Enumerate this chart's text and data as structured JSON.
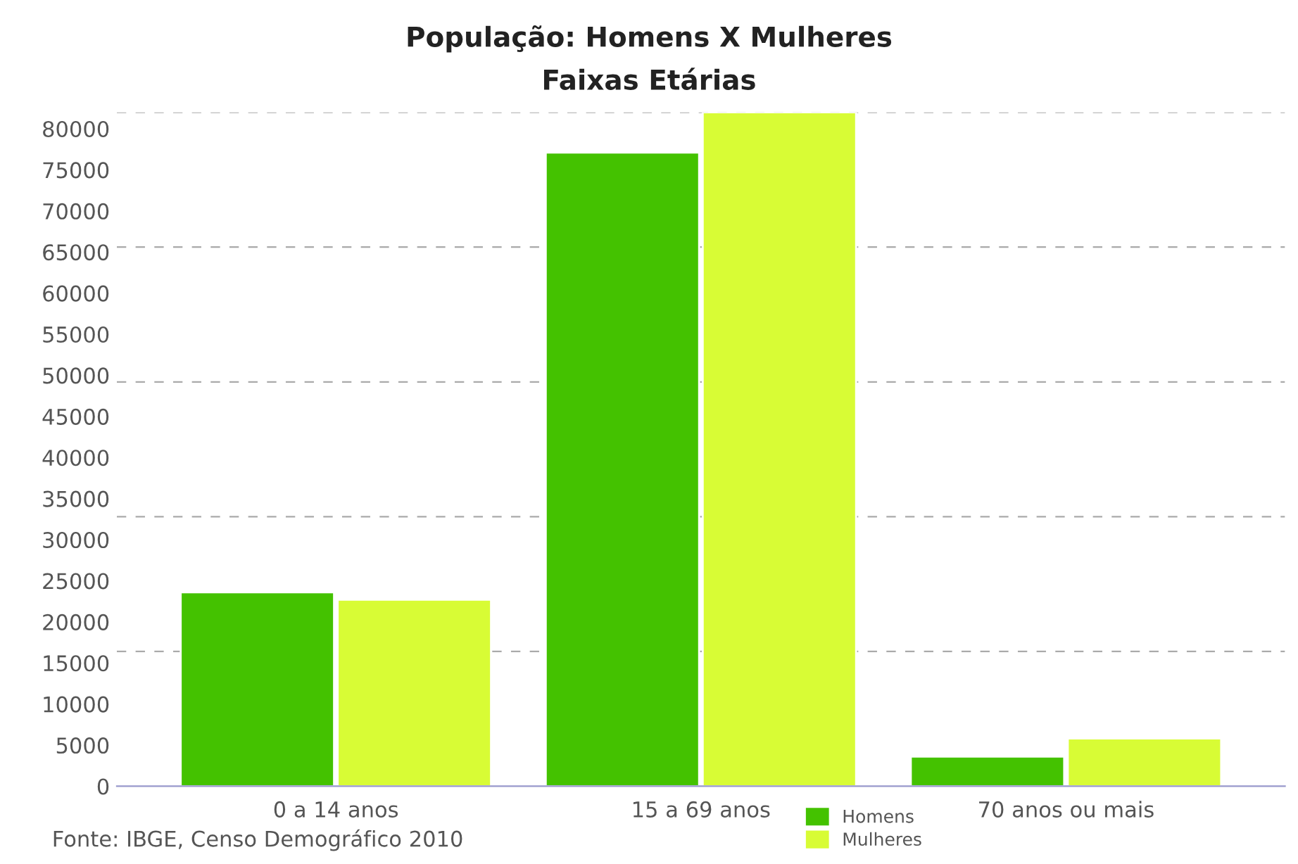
{
  "chart_data": {
    "type": "bar",
    "title": "População: Homens X Mulheres",
    "subtitle": "Faixas Etárias",
    "categories": [
      "0 a 14 anos",
      "15 a 69 anos",
      "70 anos ou mais"
    ],
    "series": [
      {
        "name": "Homens",
        "color": "#44c200",
        "values": [
          23600,
          77100,
          3600
        ]
      },
      {
        "name": "Mulheres",
        "color": "#d8fc35",
        "values": [
          22700,
          82000,
          5800
        ]
      }
    ],
    "ylim": [
      0,
      82000
    ],
    "yticks": [
      0,
      5000,
      10000,
      15000,
      20000,
      25000,
      30000,
      35000,
      40000,
      45000,
      50000,
      55000,
      60000,
      65000,
      70000,
      75000,
      80000
    ],
    "ref_lines": [
      {
        "axis": "y",
        "value": 16400,
        "color": "#aaaaaa",
        "line_style": "dashed"
      },
      {
        "axis": "y",
        "value": 32800,
        "color": "#aaaaaa",
        "line_style": "dashed"
      },
      {
        "axis": "y",
        "value": 49200,
        "color": "#aaaaaa",
        "line_style": "dashed"
      },
      {
        "axis": "y",
        "value": 65600,
        "color": "#aaaaaa",
        "line_style": "dashed"
      },
      {
        "axis": "y",
        "value": 82000,
        "color": "#aaaaaa",
        "line_style": "dashed"
      }
    ],
    "legend": "bottom",
    "annotations": [
      "Fonte: IBGE, Censo Demográfico 2010"
    ]
  }
}
